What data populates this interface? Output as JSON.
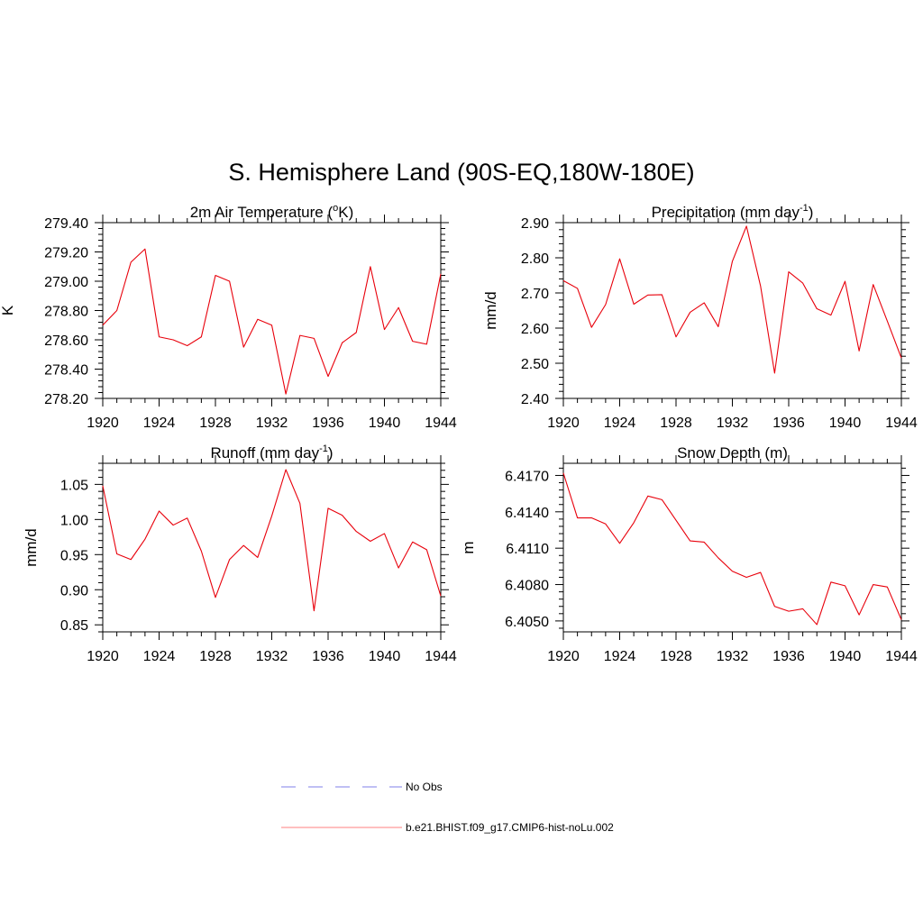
{
  "figure": {
    "title": "S. Hemisphere Land (90S-EQ,180W-180E)"
  },
  "colors": {
    "model_line": "#e8000b",
    "obs_line": "#9999ee",
    "axis": "#000000"
  },
  "chart_data": [
    {
      "type": "line",
      "title_main": "2m Air Temperature (",
      "title_sup": "o",
      "title_tail": "K)",
      "ylabel": "K",
      "xlim": [
        1920,
        1944
      ],
      "ylim": [
        278.2,
        279.4
      ],
      "xticks": [
        1920,
        1924,
        1928,
        1932,
        1936,
        1940,
        1944
      ],
      "yticks": [
        278.2,
        278.4,
        278.6,
        278.8,
        279.0,
        279.2,
        279.4
      ],
      "ytick_labels": [
        "278.20",
        "278.40",
        "278.60",
        "278.80",
        "279.00",
        "279.20",
        "279.40"
      ],
      "x": [
        1920,
        1921,
        1922,
        1923,
        1924,
        1925,
        1926,
        1927,
        1928,
        1929,
        1930,
        1931,
        1932,
        1933,
        1934,
        1935,
        1936,
        1937,
        1938,
        1939,
        1940,
        1941,
        1942,
        1943,
        1944
      ],
      "series": [
        {
          "name": "b.e21.BHIST.f09_g17.CMIP6-hist-noLu.002",
          "values": [
            278.7,
            278.8,
            279.13,
            279.22,
            278.62,
            278.6,
            278.56,
            278.62,
            279.04,
            279.0,
            278.55,
            278.74,
            278.7,
            278.23,
            278.63,
            278.61,
            278.35,
            278.58,
            278.65,
            279.1,
            278.67,
            278.82,
            278.59,
            278.57,
            279.05
          ]
        }
      ]
    },
    {
      "type": "line",
      "title_main": "Precipitation (mm day",
      "title_sup": "-1",
      "title_tail": ")",
      "ylabel": "mm/d",
      "xlim": [
        1920,
        1944
      ],
      "ylim": [
        2.4,
        2.9
      ],
      "xticks": [
        1920,
        1924,
        1928,
        1932,
        1936,
        1940,
        1944
      ],
      "yticks": [
        2.4,
        2.5,
        2.6,
        2.7,
        2.8,
        2.9
      ],
      "ytick_labels": [
        "2.40",
        "2.50",
        "2.60",
        "2.70",
        "2.80",
        "2.90"
      ],
      "x": [
        1920,
        1921,
        1922,
        1923,
        1924,
        1925,
        1926,
        1927,
        1928,
        1929,
        1930,
        1931,
        1932,
        1933,
        1934,
        1935,
        1936,
        1937,
        1938,
        1939,
        1940,
        1941,
        1942,
        1943,
        1944
      ],
      "series": [
        {
          "name": "b.e21.BHIST.f09_g17.CMIP6-hist-noLu.002",
          "values": [
            2.735,
            2.713,
            2.602,
            2.667,
            2.797,
            2.668,
            2.694,
            2.695,
            2.575,
            2.645,
            2.672,
            2.604,
            2.79,
            2.89,
            2.72,
            2.472,
            2.76,
            2.728,
            2.655,
            2.637,
            2.733,
            2.535,
            2.724,
            2.62,
            2.515
          ]
        }
      ]
    },
    {
      "type": "line",
      "title_main": "Runoff (mm day",
      "title_sup": "-1",
      "title_tail": ")",
      "ylabel": "mm/d",
      "xlim": [
        1920,
        1944
      ],
      "ylim": [
        0.84,
        1.08
      ],
      "xticks": [
        1920,
        1924,
        1928,
        1932,
        1936,
        1940,
        1944
      ],
      "yticks": [
        0.85,
        0.9,
        0.95,
        1.0,
        1.05
      ],
      "ytick_labels": [
        "0.85",
        "0.90",
        "0.95",
        "1.00",
        "1.05"
      ],
      "x": [
        1920,
        1921,
        1922,
        1923,
        1924,
        1925,
        1926,
        1927,
        1928,
        1929,
        1930,
        1931,
        1932,
        1933,
        1934,
        1935,
        1936,
        1937,
        1938,
        1939,
        1940,
        1941,
        1942,
        1943,
        1944
      ],
      "series": [
        {
          "name": "b.e21.BHIST.f09_g17.CMIP6-hist-noLu.002",
          "values": [
            1.048,
            0.951,
            0.943,
            0.972,
            1.012,
            0.992,
            1.002,
            0.955,
            0.889,
            0.943,
            0.963,
            0.946,
            1.005,
            1.071,
            1.023,
            0.87,
            1.016,
            1.006,
            0.983,
            0.969,
            0.98,
            0.931,
            0.968,
            0.957,
            0.891
          ]
        }
      ]
    },
    {
      "type": "line",
      "title_main": "Snow Depth (m)",
      "title_sup": "",
      "title_tail": "",
      "ylabel": "m",
      "xlim": [
        1920,
        1944
      ],
      "ylim": [
        6.4041,
        6.418
      ],
      "xticks": [
        1920,
        1924,
        1928,
        1932,
        1936,
        1940,
        1944
      ],
      "yticks": [
        6.405,
        6.408,
        6.411,
        6.414,
        6.417
      ],
      "ytick_labels": [
        "6.4050",
        "6.4080",
        "6.4110",
        "6.4140",
        "6.4170"
      ],
      "x": [
        1920,
        1921,
        1922,
        1923,
        1924,
        1925,
        1926,
        1927,
        1928,
        1929,
        1930,
        1931,
        1932,
        1933,
        1934,
        1935,
        1936,
        1937,
        1938,
        1939,
        1940,
        1941,
        1942,
        1943,
        1944
      ],
      "series": [
        {
          "name": "b.e21.BHIST.f09_g17.CMIP6-hist-noLu.002",
          "values": [
            6.4172,
            6.4135,
            6.4135,
            6.413,
            6.4114,
            6.4131,
            6.4153,
            6.415,
            6.4133,
            6.4116,
            6.4115,
            6.4102,
            6.4091,
            6.4086,
            6.409,
            6.4062,
            6.4058,
            6.406,
            6.4047,
            6.4082,
            6.4079,
            6.4055,
            6.408,
            6.4078,
            6.4051
          ]
        }
      ]
    }
  ],
  "legend": {
    "items": [
      {
        "label": "No Obs",
        "style": "dashed"
      },
      {
        "label": "b.e21.BHIST.f09_g17.CMIP6-hist-noLu.002",
        "style": "solid"
      }
    ]
  }
}
